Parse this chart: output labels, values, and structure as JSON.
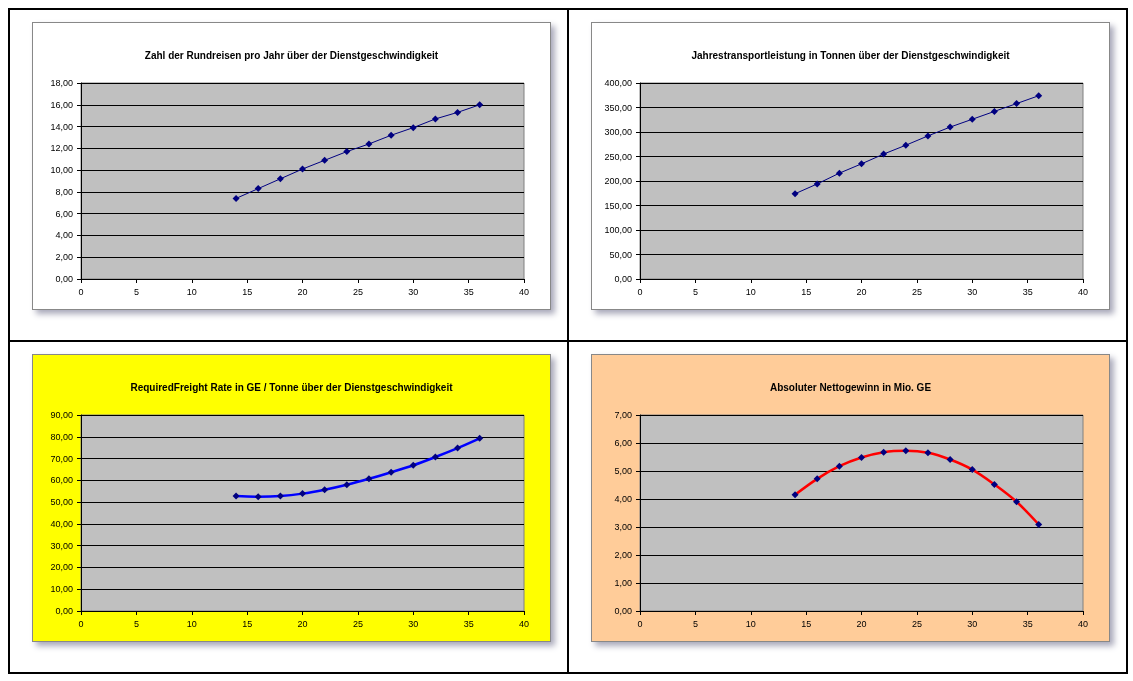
{
  "chart_data": [
    {
      "type": "line",
      "title": "Zahl der Rundreisen pro Jahr über der Dienstgeschwindigkeit",
      "x": [
        14,
        16,
        18,
        20,
        22,
        24,
        26,
        28,
        30,
        32,
        34,
        36
      ],
      "series": [
        {
          "color": "#000080",
          "values": [
            7.4,
            8.3,
            9.2,
            10.1,
            10.9,
            11.7,
            12.4,
            13.2,
            13.9,
            14.7,
            15.3,
            16.0
          ]
        }
      ],
      "xlim": [
        0,
        40
      ],
      "xticks": [
        0,
        5,
        10,
        15,
        20,
        25,
        30,
        35,
        40
      ],
      "ylim": [
        0,
        18
      ],
      "yticks": [
        {
          "value": 0,
          "label": "0,00"
        },
        {
          "value": 2,
          "label": "2,00"
        },
        {
          "value": 4,
          "label": "4,00"
        },
        {
          "value": 6,
          "label": "6,00"
        },
        {
          "value": 8,
          "label": "8,00"
        },
        {
          "value": 10,
          "label": "10,00"
        },
        {
          "value": 12,
          "label": "12,00"
        },
        {
          "value": 14,
          "label": "14,00"
        },
        {
          "value": 16,
          "label": "16,00"
        },
        {
          "value": 18,
          "label": "18,00"
        }
      ],
      "grid": "y",
      "marker": "diamond",
      "line_style": "solid"
    },
    {
      "type": "line",
      "title": "Jahrestransportleistung in Tonnen über der Dienstgeschwindigkeit",
      "x": [
        14,
        16,
        18,
        20,
        22,
        24,
        26,
        28,
        30,
        32,
        34,
        36
      ],
      "series": [
        {
          "color": "#000080",
          "values": [
            174,
            194,
            216,
            235,
            255,
            273,
            292,
            310,
            326,
            342,
            358,
            374
          ]
        }
      ],
      "xlim": [
        0,
        40
      ],
      "xticks": [
        0,
        5,
        10,
        15,
        20,
        25,
        30,
        35,
        40
      ],
      "ylim": [
        0,
        400
      ],
      "yticks": [
        {
          "value": 0,
          "label": "0,00"
        },
        {
          "value": 50,
          "label": "50,00"
        },
        {
          "value": 100,
          "label": "100,00"
        },
        {
          "value": 150,
          "label": "150,00"
        },
        {
          "value": 200,
          "label": "200,00"
        },
        {
          "value": 250,
          "label": "250,00"
        },
        {
          "value": 300,
          "label": "300,00"
        },
        {
          "value": 350,
          "label": "350,00"
        },
        {
          "value": 400,
          "label": "400,00"
        }
      ],
      "grid": "y",
      "marker": "diamond",
      "line_style": "solid"
    },
    {
      "type": "line",
      "title": "RequiredFreight Rate in GE / Tonne über der Dienstgeschwindigkeit",
      "x": [
        14,
        16,
        18,
        20,
        22,
        24,
        26,
        28,
        30,
        32,
        34,
        36
      ],
      "series": [
        {
          "color": "#0000ff",
          "values": [
            52.8,
            52.5,
            52.8,
            53.9,
            55.7,
            58.0,
            60.7,
            63.7,
            66.9,
            70.7,
            74.8,
            79.3
          ]
        }
      ],
      "xlim": [
        0,
        40
      ],
      "xticks": [
        0,
        5,
        10,
        15,
        20,
        25,
        30,
        35,
        40
      ],
      "ylim": [
        0,
        90
      ],
      "yticks": [
        {
          "value": 0,
          "label": "0,00"
        },
        {
          "value": 10,
          "label": "10,00"
        },
        {
          "value": 20,
          "label": "20,00"
        },
        {
          "value": 30,
          "label": "30,00"
        },
        {
          "value": 40,
          "label": "40,00"
        },
        {
          "value": 50,
          "label": "50,00"
        },
        {
          "value": 60,
          "label": "60,00"
        },
        {
          "value": 70,
          "label": "70,00"
        },
        {
          "value": 80,
          "label": "80,00"
        },
        {
          "value": 90,
          "label": "90,00"
        }
      ],
      "grid": "y",
      "marker": "diamond",
      "line_style": "solid"
    },
    {
      "type": "line",
      "title": "Absoluter Nettogewinn in Mio. GE",
      "x": [
        14,
        16,
        18,
        20,
        22,
        24,
        26,
        28,
        30,
        32,
        34,
        36
      ],
      "series": [
        {
          "color": "#ff0000",
          "values": [
            4.15,
            4.72,
            5.17,
            5.48,
            5.67,
            5.72,
            5.65,
            5.41,
            5.05,
            4.52,
            3.9,
            3.09
          ]
        }
      ],
      "xlim": [
        0,
        40
      ],
      "xticks": [
        0,
        5,
        10,
        15,
        20,
        25,
        30,
        35,
        40
      ],
      "ylim": [
        0,
        7
      ],
      "yticks": [
        {
          "value": 0,
          "label": "0,00"
        },
        {
          "value": 1,
          "label": "1,00"
        },
        {
          "value": 2,
          "label": "2,00"
        },
        {
          "value": 3,
          "label": "3,00"
        },
        {
          "value": 4,
          "label": "4,00"
        },
        {
          "value": 5,
          "label": "5,00"
        },
        {
          "value": 6,
          "label": "6,00"
        },
        {
          "value": 7,
          "label": "7,00"
        }
      ],
      "grid": "y",
      "marker": "diamond",
      "line_style": "solid"
    }
  ]
}
